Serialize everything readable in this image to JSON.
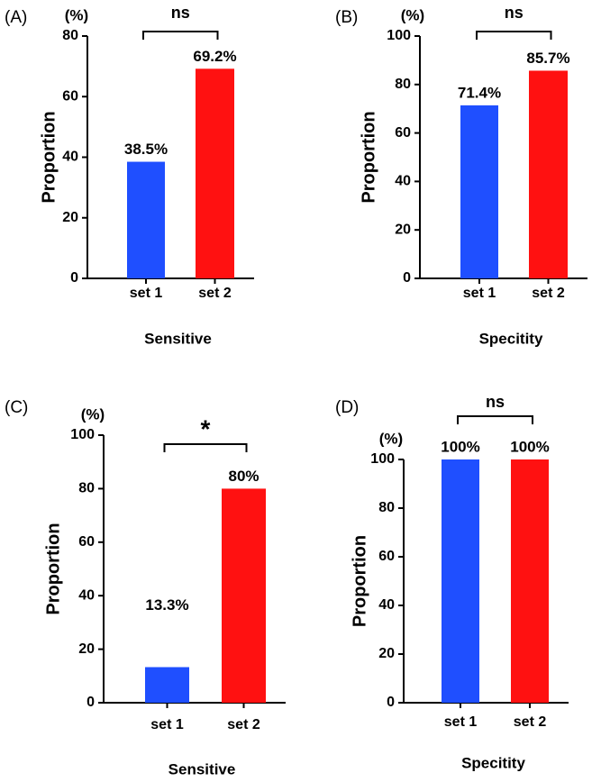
{
  "chart_data": [
    {
      "type": "bar",
      "panel": "(A)",
      "unit": "(%)",
      "ylabel": "Proportion",
      "xlabel": "Sensitive",
      "categories": [
        "set 1",
        "set 2"
      ],
      "values": [
        38.5,
        69.2
      ],
      "value_labels": [
        "38.5%",
        "69.2%"
      ],
      "colors": [
        "#1f4fff",
        "#ff1111"
      ],
      "annotation": "ns",
      "ylim": [
        0,
        80
      ],
      "yticks": [
        0,
        20,
        40,
        60,
        80
      ]
    },
    {
      "type": "bar",
      "panel": "(B)",
      "unit": "(%)",
      "ylabel": "Proportion",
      "xlabel": "Specitity",
      "categories": [
        "set 1",
        "set 2"
      ],
      "values": [
        71.4,
        85.7
      ],
      "value_labels": [
        "71.4%",
        "85.7%"
      ],
      "colors": [
        "#1f4fff",
        "#ff1111"
      ],
      "annotation": "ns",
      "ylim": [
        0,
        100
      ],
      "yticks": [
        0,
        20,
        40,
        60,
        80,
        100
      ]
    },
    {
      "type": "bar",
      "panel": "(C)",
      "unit": "(%)",
      "ylabel": "Proportion",
      "xlabel": "Sensitive",
      "categories": [
        "set 1",
        "set 2"
      ],
      "values": [
        13.3,
        80
      ],
      "value_labels": [
        "13.3%",
        "80%"
      ],
      "colors": [
        "#1f4fff",
        "#ff1111"
      ],
      "annotation": "*",
      "ylim": [
        0,
        100
      ],
      "yticks": [
        0,
        20,
        40,
        60,
        80,
        100
      ]
    },
    {
      "type": "bar",
      "panel": "(D)",
      "unit": "(%)",
      "ylabel": "Proportion",
      "xlabel": "Specitity",
      "categories": [
        "set 1",
        "set 2"
      ],
      "values": [
        100,
        100
      ],
      "value_labels": [
        "100%",
        "100%"
      ],
      "colors": [
        "#1f4fff",
        "#ff1111"
      ],
      "annotation": "ns",
      "ylim": [
        0,
        100
      ],
      "yticks": [
        0,
        20,
        40,
        60,
        80,
        100
      ]
    }
  ]
}
